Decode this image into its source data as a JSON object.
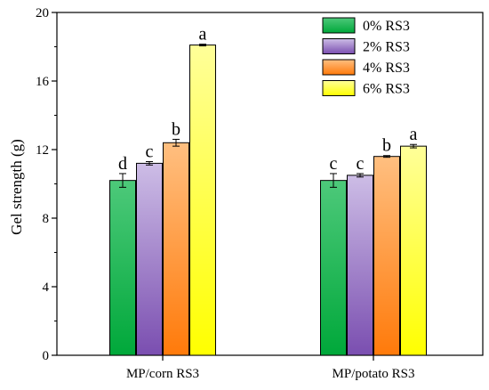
{
  "chart_data": {
    "type": "bar",
    "title": "",
    "xlabel": "",
    "ylabel": "Gel strength (g)",
    "ylim": [
      0,
      20
    ],
    "yticks": [
      0,
      4,
      8,
      12,
      16,
      20
    ],
    "grid": false,
    "legend_position": "top-right",
    "categories": [
      "MP/corn RS3",
      "MP/potato RS3"
    ],
    "series": [
      {
        "name": "0% RS3",
        "values": [
          10.2,
          10.2
        ],
        "errors": [
          0.4,
          0.4
        ],
        "labels": [
          "d",
          "c"
        ],
        "color_top": "#4dc97a",
        "color_bottom": "#00a83a"
      },
      {
        "name": "2% RS3",
        "values": [
          11.2,
          10.5
        ],
        "errors": [
          0.1,
          0.1
        ],
        "labels": [
          "c",
          "c"
        ],
        "color_top": "#cdbde6",
        "color_bottom": "#7a4eb0"
      },
      {
        "name": "4% RS3",
        "values": [
          12.4,
          11.6
        ],
        "errors": [
          0.2,
          0.05
        ],
        "labels": [
          "b",
          "b"
        ],
        "color_top": "#ffbf80",
        "color_bottom": "#ff7a0a"
      },
      {
        "name": "6% RS3",
        "values": [
          18.1,
          12.2
        ],
        "errors": [
          0.05,
          0.1
        ],
        "labels": [
          "a",
          "a"
        ],
        "color_top": "#ffff99",
        "color_bottom": "#ffff00"
      }
    ]
  }
}
